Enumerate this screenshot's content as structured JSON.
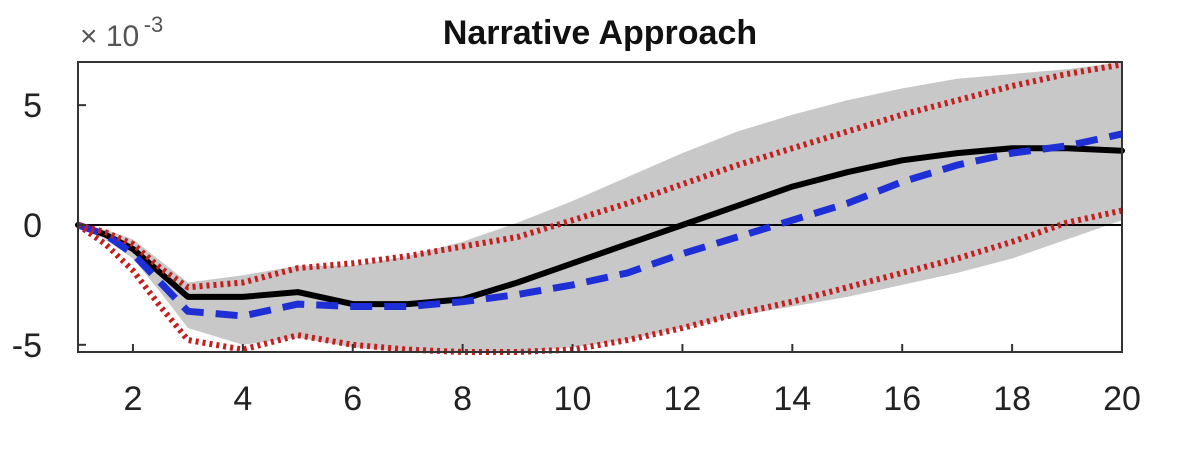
{
  "chart_data": {
    "type": "line",
    "title": "Narrative Approach",
    "exponent_base": "× 10",
    "exponent_power": "-3",
    "xlim": [
      1,
      20
    ],
    "ylim": [
      -5.3,
      6.8
    ],
    "x_ticks": [
      2,
      4,
      6,
      8,
      10,
      12,
      14,
      16,
      18,
      20
    ],
    "y_ticks": [
      -5,
      0,
      5
    ],
    "zero_line": true,
    "grid": false,
    "band": {
      "x": [
        1,
        1.5,
        2,
        2.5,
        3,
        4,
        5,
        6,
        7,
        8,
        9,
        10,
        11,
        12,
        13,
        14,
        15,
        16,
        17,
        18,
        19,
        20
      ],
      "upper": [
        0,
        -0.2,
        -0.6,
        -1.5,
        -2.4,
        -2.1,
        -1.7,
        -1.7,
        -1.3,
        -0.7,
        0.1,
        1.0,
        2.0,
        3.0,
        3.9,
        4.6,
        5.2,
        5.7,
        6.1,
        6.3,
        6.5,
        6.8
      ],
      "lower": [
        0,
        -0.6,
        -1.4,
        -2.8,
        -4.3,
        -5.0,
        -4.7,
        -5.1,
        -5.3,
        -5.3,
        -5.3,
        -5.1,
        -4.8,
        -4.3,
        -3.8,
        -3.4,
        -3.0,
        -2.5,
        -2.0,
        -1.4,
        -0.6,
        0.2
      ]
    },
    "series": [
      {
        "style": "solid",
        "color": "#000000",
        "x": [
          1,
          1.5,
          2,
          2.5,
          3,
          4,
          5,
          6,
          7,
          8,
          9,
          10,
          11,
          12,
          13,
          14,
          15,
          16,
          17,
          18,
          19,
          20
        ],
        "y": [
          0,
          -0.4,
          -1.0,
          -2.0,
          -3.0,
          -3.0,
          -2.8,
          -3.3,
          -3.3,
          -3.1,
          -2.4,
          -1.6,
          -0.8,
          0.0,
          0.8,
          1.6,
          2.2,
          2.7,
          3.0,
          3.2,
          3.2,
          3.1
        ]
      },
      {
        "style": "dashed",
        "color": "#1f2fd6",
        "x": [
          1,
          1.5,
          2,
          2.5,
          3,
          4,
          5,
          6,
          7,
          8,
          9,
          10,
          11,
          12,
          13,
          14,
          15,
          16,
          17,
          18,
          19,
          20
        ],
        "y": [
          0,
          -0.4,
          -1.2,
          -2.4,
          -3.6,
          -3.8,
          -3.3,
          -3.4,
          -3.4,
          -3.2,
          -2.9,
          -2.5,
          -2.0,
          -1.2,
          -0.5,
          0.2,
          0.9,
          1.8,
          2.5,
          3.0,
          3.3,
          3.8
        ]
      },
      {
        "style": "dotted",
        "color": "#c41e1e",
        "x": [
          1,
          1.5,
          2,
          2.5,
          3,
          4,
          5,
          6,
          7,
          8,
          9,
          10,
          11,
          12,
          13,
          14,
          15,
          16,
          17,
          18,
          19,
          20
        ],
        "y": [
          0,
          -0.3,
          -0.8,
          -1.8,
          -2.6,
          -2.4,
          -1.8,
          -1.6,
          -1.3,
          -0.9,
          -0.5,
          0.2,
          0.9,
          1.7,
          2.5,
          3.2,
          3.9,
          4.6,
          5.2,
          5.8,
          6.3,
          6.7
        ]
      },
      {
        "style": "dotted",
        "color": "#c41e1e",
        "x": [
          1,
          1.5,
          2,
          2.5,
          3,
          4,
          5,
          6,
          7,
          8,
          9,
          10,
          11,
          12,
          13,
          14,
          15,
          16,
          17,
          18,
          19,
          20
        ],
        "y": [
          0,
          -0.8,
          -1.9,
          -3.4,
          -4.8,
          -5.2,
          -4.6,
          -5.0,
          -5.2,
          -5.3,
          -5.3,
          -5.2,
          -4.8,
          -4.3,
          -3.7,
          -3.2,
          -2.6,
          -2.0,
          -1.4,
          -0.7,
          0.1,
          0.6
        ]
      }
    ]
  }
}
